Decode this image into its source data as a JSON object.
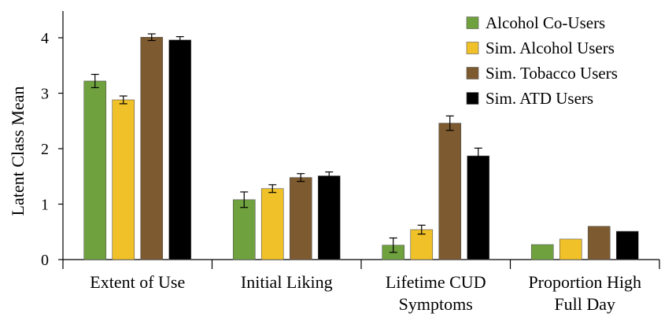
{
  "chart_data": {
    "type": "bar",
    "title": "",
    "xlabel": "",
    "ylabel": "Latent Class Mean",
    "ylim": [
      0,
      4.5
    ],
    "yticks": [
      0,
      1,
      2,
      3,
      4
    ],
    "grid": false,
    "legend_position": "top-right",
    "categories": [
      [
        "Extent of Use"
      ],
      [
        "Initial Liking"
      ],
      [
        "Lifetime CUD",
        "Symptoms"
      ],
      [
        "Proportion High",
        "Full Day"
      ]
    ],
    "series": [
      {
        "name": "Alcohol Co-Users",
        "color": "#70a13f",
        "values": [
          3.22,
          1.08,
          0.26,
          0.27
        ],
        "errors": [
          0.12,
          0.14,
          0.13,
          null
        ]
      },
      {
        "name": "Sim. Alcohol Users",
        "color": "#f0c128",
        "values": [
          2.88,
          1.28,
          0.54,
          0.37
        ],
        "errors": [
          0.07,
          0.07,
          0.08,
          null
        ]
      },
      {
        "name": "Sim. Tobacco Users",
        "color": "#7d5a2f",
        "values": [
          4.01,
          1.48,
          2.46,
          0.6
        ],
        "errors": [
          0.06,
          0.07,
          0.13,
          null
        ]
      },
      {
        "name": "Sim. ATD Users",
        "color": "#000000",
        "values": [
          3.96,
          1.51,
          1.87,
          0.51
        ],
        "errors": [
          0.06,
          0.07,
          0.14,
          null
        ]
      }
    ]
  }
}
